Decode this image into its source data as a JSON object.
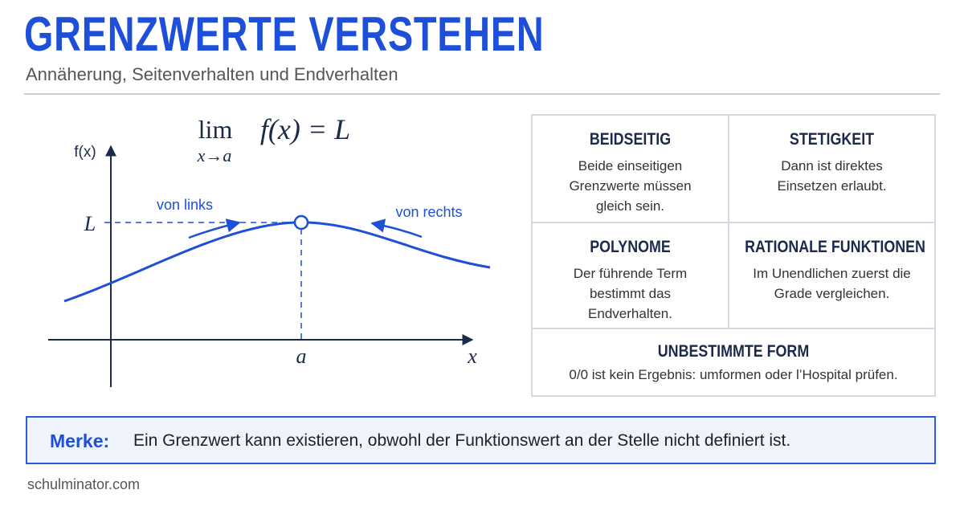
{
  "header": {
    "title": "GRENZWERTE VERSTEHEN",
    "subtitle": "Annäherung, Seitenverhalten und Endverhalten"
  },
  "diagram": {
    "formula": {
      "lim": "lim",
      "sub": "x→a",
      "rhs": "f(x) = L"
    },
    "y_axis_label": "f(x)",
    "x_axis_label": "x",
    "limit_label": "L",
    "point_label": "a",
    "left_label": "von links",
    "right_label": "von rechts"
  },
  "cards": [
    {
      "title": "BEIDSEITIG",
      "text": "Beide einseitigen Grenzwerte müssen gleich sein."
    },
    {
      "title": "STETIGKEIT",
      "text": "Dann ist direktes Einsetzen erlaubt."
    },
    {
      "title": "POLYNOME",
      "text": "Der führende Term bestimmt das Endverhalten."
    },
    {
      "title": "RATIONALE FUNKTIONEN",
      "text": "Im Unendlichen zuerst die Grade vergleichen."
    },
    {
      "title": "UNBESTIMMTE FORM",
      "text": "0/0 ist kein Ergebnis: umformen oder l’Hospital prüfen."
    }
  ],
  "note": {
    "label": "Merke:",
    "text": "Ein Grenzwert kann existieren, obwohl der Funktionswert an der Stelle nicht definiert ist."
  },
  "footer": "schulminator.com"
}
